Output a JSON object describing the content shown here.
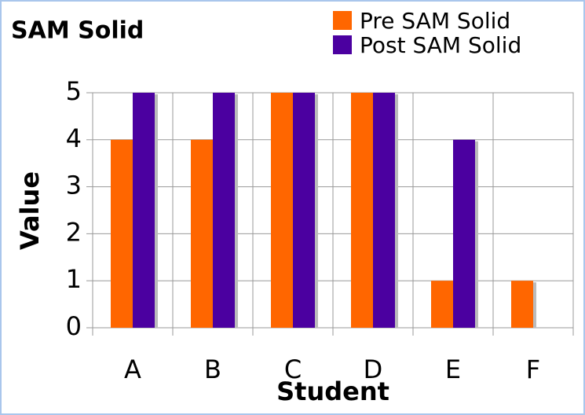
{
  "chart_data": {
    "type": "bar",
    "title": "SAM Solid",
    "x_label": "Student",
    "y_label": "Value",
    "categories": [
      "A",
      "B",
      "C",
      "D",
      "E",
      "F"
    ],
    "series": [
      {
        "name": "Pre SAM Solid",
        "color": "#ff6600",
        "values": [
          4,
          4,
          5,
          5,
          1,
          1
        ]
      },
      {
        "name": "Post SAM Solid",
        "color": "#4b00a0",
        "values": [
          5,
          5,
          5,
          5,
          4,
          0
        ]
      }
    ],
    "ylim": [
      0,
      5
    ],
    "yticks": [
      0,
      1,
      2,
      3,
      4,
      5
    ],
    "grid": true
  }
}
